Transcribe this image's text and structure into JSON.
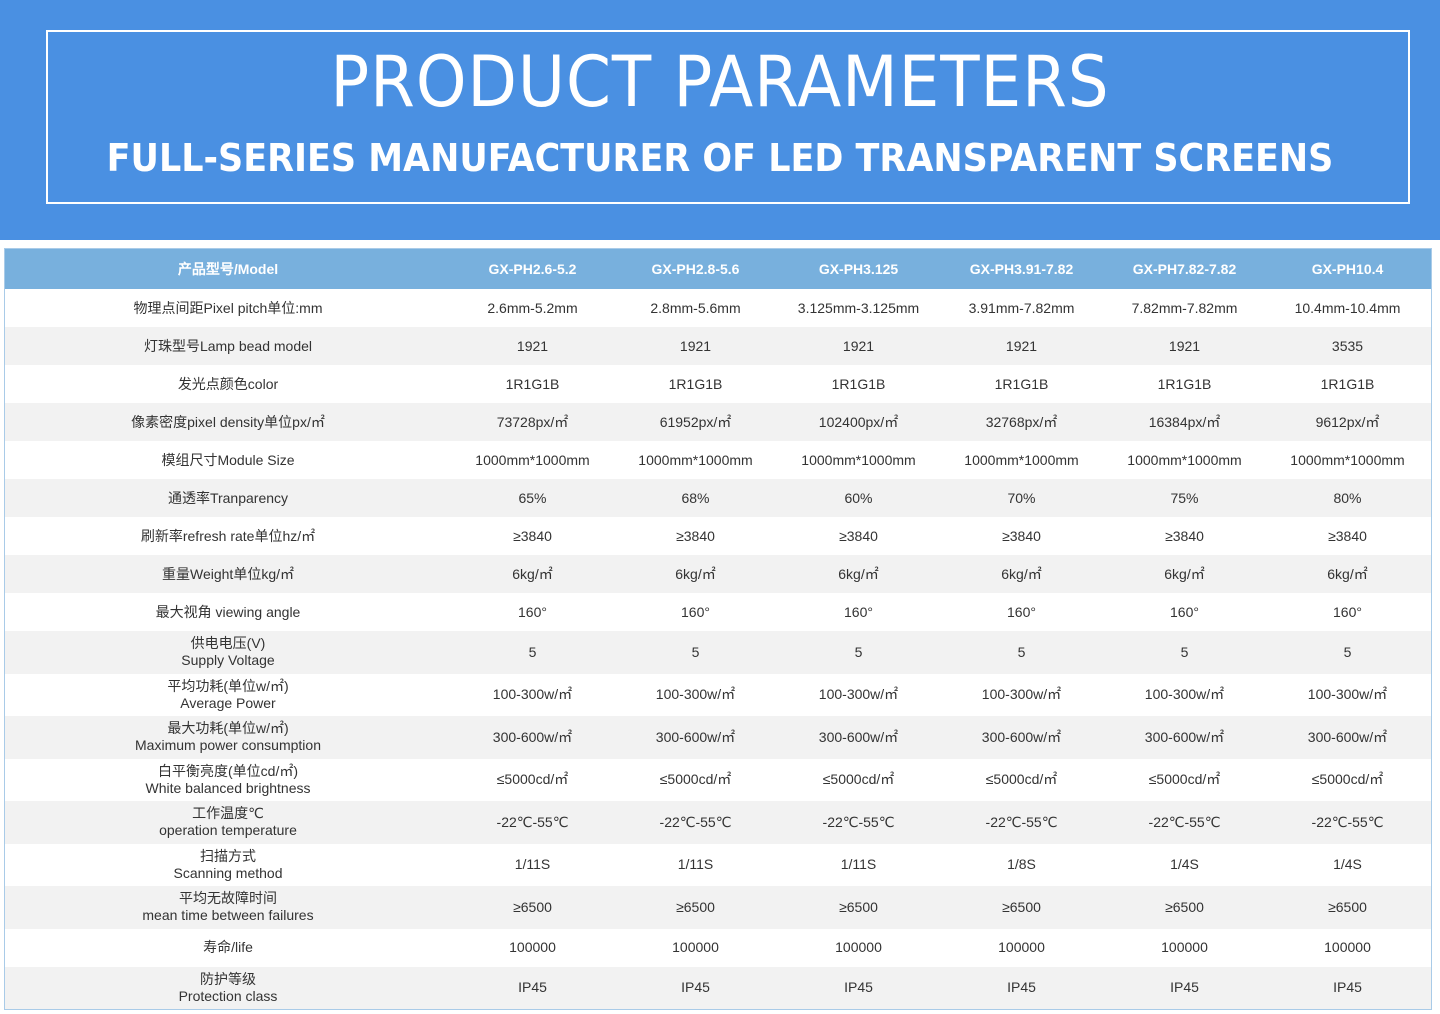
{
  "banner": {
    "title": "PRODUCT PARAMETERS",
    "subtitle": "FULL-SERIES MANUFACTURER OF LED TRANSPARENT SCREENS"
  },
  "table": {
    "header": {
      "label": "产品型号/Model",
      "models": [
        "GX-PH2.6-5.2",
        "GX-PH2.8-5.6",
        "GX-PH3.125",
        "GX-PH3.91-7.82",
        "GX-PH7.82-7.82",
        "GX-PH10.4"
      ]
    },
    "rows": [
      {
        "label": "物理点间距Pixel pitch单位:mm",
        "values": [
          "2.6mm-5.2mm",
          "2.8mm-5.6mm",
          "3.125mm-3.125mm",
          "3.91mm-7.82mm",
          "7.82mm-7.82mm",
          "10.4mm-10.4mm"
        ]
      },
      {
        "label": "灯珠型号Lamp bead model",
        "values": [
          "1921",
          "1921",
          "1921",
          "1921",
          "1921",
          "3535"
        ]
      },
      {
        "label": "发光点颜色color",
        "values": [
          "1R1G1B",
          "1R1G1B",
          "1R1G1B",
          "1R1G1B",
          "1R1G1B",
          "1R1G1B"
        ]
      },
      {
        "label": "像素密度pixel density单位px/㎡",
        "values": [
          "73728px/㎡",
          "61952px/㎡",
          "102400px/㎡",
          "32768px/㎡",
          "16384px/㎡",
          "9612px/㎡"
        ]
      },
      {
        "label": "模组尺寸Module Size",
        "values": [
          "1000mm*1000mm",
          "1000mm*1000mm",
          "1000mm*1000mm",
          "1000mm*1000mm",
          "1000mm*1000mm",
          "1000mm*1000mm"
        ]
      },
      {
        "label": "通透率Tranparency",
        "values": [
          "65%",
          "68%",
          "60%",
          "70%",
          "75%",
          "80%"
        ]
      },
      {
        "label": "刷新率refresh rate单位hz/㎡",
        "values": [
          "≥3840",
          "≥3840",
          "≥3840",
          "≥3840",
          "≥3840",
          "≥3840"
        ]
      },
      {
        "label": "重量Weight单位kg/㎡",
        "values": [
          "6kg/㎡",
          "6kg/㎡",
          "6kg/㎡",
          "6kg/㎡",
          "6kg/㎡",
          "6kg/㎡"
        ]
      },
      {
        "label": "最大视角 viewing angle",
        "values": [
          "160°",
          "160°",
          "160°",
          "160°",
          "160°",
          "160°"
        ]
      },
      {
        "label": "供电电压(V)",
        "label2": "Supply Voltage",
        "values": [
          "5",
          "5",
          "5",
          "5",
          "5",
          "5"
        ]
      },
      {
        "label": "平均功耗(单位w/㎡)",
        "label2": "Average Power",
        "values": [
          "100-300w/㎡",
          "100-300w/㎡",
          "100-300w/㎡",
          "100-300w/㎡",
          "100-300w/㎡",
          "100-300w/㎡"
        ]
      },
      {
        "label": "最大功耗(单位w/㎡)",
        "label2": "Maximum power consumption",
        "values": [
          "300-600w/㎡",
          "300-600w/㎡",
          "300-600w/㎡",
          "300-600w/㎡",
          "300-600w/㎡",
          "300-600w/㎡"
        ]
      },
      {
        "label": "白平衡亮度(单位cd/㎡)",
        "label2": "White balanced brightness",
        "values": [
          "≤5000cd/㎡",
          "≤5000cd/㎡",
          "≤5000cd/㎡",
          "≤5000cd/㎡",
          "≤5000cd/㎡",
          "≤5000cd/㎡"
        ]
      },
      {
        "label": "工作温度℃",
        "label2": "operation temperature",
        "values": [
          "-22℃-55℃",
          "-22℃-55℃",
          "-22℃-55℃",
          "-22℃-55℃",
          "-22℃-55℃",
          "-22℃-55℃"
        ]
      },
      {
        "label": "扫描方式",
        "label2": "Scanning method",
        "values": [
          "1/11S",
          "1/11S",
          "1/11S",
          "1/8S",
          "1/4S",
          "1/4S"
        ]
      },
      {
        "label": "平均无故障时间",
        "label2": "mean time between failures",
        "values": [
          "≥6500",
          "≥6500",
          "≥6500",
          "≥6500",
          "≥6500",
          "≥6500"
        ]
      },
      {
        "label": "寿命/life",
        "values": [
          "100000",
          "100000",
          "100000",
          "100000",
          "100000",
          "100000"
        ]
      },
      {
        "label": "防护等级",
        "label2": "Protection class",
        "values": [
          "IP45",
          "IP45",
          "IP45",
          "IP45",
          "IP45",
          "IP45"
        ]
      }
    ]
  }
}
